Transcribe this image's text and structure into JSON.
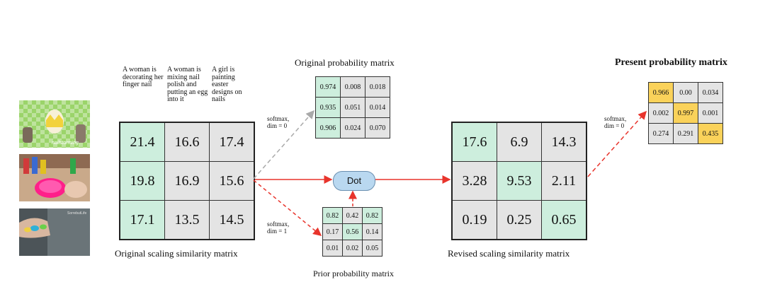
{
  "captions": [
    "A woman is decorating her finger nail",
    "A woman is mixing nail polish and putting an egg into it",
    "A girl is painting easter designs on nails"
  ],
  "thumbnail_texts": [
    "nailstorming",
    "SorrebutLife"
  ],
  "labels": {
    "original_scaling": "Original scaling similarity matrix",
    "original_probability": "Original probability matrix",
    "prior_probability": "Prior probability matrix",
    "revised_scaling": "Revised scaling similarity matrix",
    "present_probability": "Present probability matrix",
    "softmax_dim0_a": "softmax,",
    "softmax_dim0_b": "dim = 0",
    "softmax_dim1_a": "softmax,",
    "softmax_dim1_b": "dim = 1",
    "softmax_dim0_c": "softmax,",
    "softmax_dim0_d": "dim = 0",
    "dot": "Dot"
  },
  "colors": {
    "green": "#cdeedd",
    "gray": "#e4e4e4",
    "yellow": "#fad25a",
    "arrow_red": "#e8342c",
    "arrow_gray": "#a9a9a9",
    "dot_fill": "#b9d8f0"
  },
  "matrices": {
    "original_scaling": [
      [
        "21.4",
        "16.6",
        "17.4"
      ],
      [
        "19.8",
        "16.9",
        "15.6"
      ],
      [
        "17.1",
        "13.5",
        "14.5"
      ]
    ],
    "original_probability": [
      [
        "0.974",
        "0.008",
        "0.018"
      ],
      [
        "0.935",
        "0.051",
        "0.014"
      ],
      [
        "0.906",
        "0.024",
        "0.070"
      ]
    ],
    "prior_probability": [
      [
        "0.82",
        "0.42",
        "0.82"
      ],
      [
        "0.17",
        "0.56",
        "0.14"
      ],
      [
        "0.01",
        "0.02",
        "0.05"
      ]
    ],
    "revised_scaling": [
      [
        "17.6",
        "6.9",
        "14.3"
      ],
      [
        "3.28",
        "9.53",
        "2.11"
      ],
      [
        "0.19",
        "0.25",
        "0.65"
      ]
    ],
    "present_probability": [
      [
        "0.966",
        "0.00",
        "0.034"
      ],
      [
        "0.002",
        "0.997",
        "0.001"
      ],
      [
        "0.274",
        "0.291",
        "0.435"
      ]
    ]
  }
}
